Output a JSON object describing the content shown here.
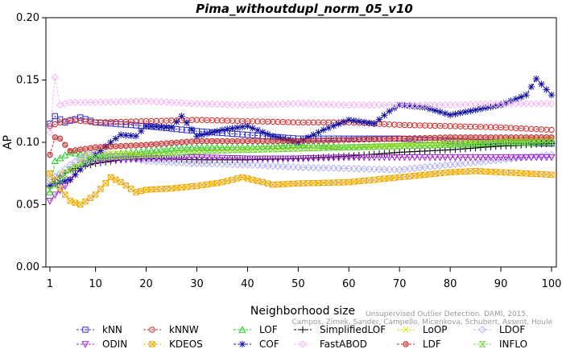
{
  "chart_data": {
    "type": "line",
    "title": "Pima_withoutdupl_norm_05_v10",
    "xlabel": "Neighborhood size",
    "ylabel": "AP",
    "xlim": [
      1,
      100
    ],
    "ylim": [
      0,
      0.2
    ],
    "x_ticks": [
      1,
      10,
      20,
      30,
      40,
      50,
      60,
      70,
      80,
      90,
      100
    ],
    "y_ticks": [
      "0.00",
      "0.05",
      "0.10",
      "0.15",
      "0.20"
    ],
    "grid": false,
    "legend_position": "bottom",
    "watermark": [
      "Unsupervised Outlier Detection. DAMI, 2015.",
      "Campos, Zimek, Sander, Campello, Micenkova, Schubert, Assent, Houle"
    ],
    "series": [
      {
        "name": "kNN",
        "color": "#2a2ad4",
        "marker": "square",
        "dash": "3,2",
        "x": [
          1,
          2,
          4,
          7,
          10,
          20,
          30,
          40,
          50,
          60,
          70,
          80,
          90,
          100
        ],
        "y": [
          0.115,
          0.121,
          0.116,
          0.12,
          0.116,
          0.113,
          0.109,
          0.106,
          0.103,
          0.103,
          0.103,
          0.101,
          0.1,
          0.099
        ]
      },
      {
        "name": "kNNW",
        "color": "#d42a2a",
        "marker": "circle",
        "dash": "3,2",
        "x": [
          1,
          3,
          5,
          10,
          20,
          30,
          40,
          50,
          60,
          70,
          80,
          90,
          100
        ],
        "y": [
          0.113,
          0.116,
          0.118,
          0.116,
          0.117,
          0.118,
          0.117,
          0.116,
          0.116,
          0.114,
          0.113,
          0.112,
          0.11
        ]
      },
      {
        "name": "LOF",
        "color": "#22cc22",
        "marker": "triangle-up",
        "dash": "3,2",
        "x": [
          1,
          2,
          5,
          10,
          15,
          20,
          25,
          30,
          40,
          50,
          60,
          70,
          80,
          90,
          100
        ],
        "y": [
          0.06,
          0.085,
          0.092,
          0.088,
          0.091,
          0.093,
          0.095,
          0.096,
          0.096,
          0.098,
          0.096,
          0.097,
          0.098,
          0.099,
          0.1
        ]
      },
      {
        "name": "SimplifiedLOF",
        "color": "#000000",
        "marker": "plus",
        "dash": "3,2",
        "x": [
          1,
          2,
          3,
          5,
          7,
          10,
          15,
          20,
          30,
          40,
          50,
          60,
          70,
          80,
          90,
          100
        ],
        "y": [
          0.065,
          0.07,
          0.073,
          0.078,
          0.08,
          0.083,
          0.086,
          0.087,
          0.086,
          0.086,
          0.087,
          0.089,
          0.092,
          0.094,
          0.097,
          0.099
        ]
      },
      {
        "name": "LoOP",
        "color": "#e0e000",
        "marker": "x",
        "dash": "3,2",
        "x": [
          1,
          3,
          5,
          8,
          10,
          20,
          30,
          40,
          50,
          60,
          70,
          80,
          90,
          100
        ],
        "y": [
          0.07,
          0.075,
          0.078,
          0.09,
          0.092,
          0.09,
          0.093,
          0.094,
          0.095,
          0.096,
          0.098,
          0.1,
          0.102,
          0.103
        ]
      },
      {
        "name": "LDOF",
        "color": "#b0b0f0",
        "marker": "diamond",
        "dash": "3,2",
        "x": [
          1,
          3,
          5,
          8,
          10,
          20,
          30,
          40,
          50,
          60,
          70,
          80,
          90,
          100
        ],
        "y": [
          0.07,
          0.075,
          0.082,
          0.09,
          0.092,
          0.085,
          0.083,
          0.082,
          0.08,
          0.079,
          0.078,
          0.082,
          0.086,
          0.09
        ]
      },
      {
        "name": "ODIN",
        "color": "#a020d0",
        "marker": "triangle-down",
        "dash": "3,2",
        "x": [
          1,
          2,
          4,
          6,
          8,
          10,
          20,
          30,
          40,
          50,
          60,
          70,
          80,
          90,
          100
        ],
        "y": [
          0.053,
          0.058,
          0.065,
          0.075,
          0.083,
          0.085,
          0.087,
          0.088,
          0.087,
          0.087,
          0.088,
          0.088,
          0.088,
          0.088,
          0.088
        ]
      },
      {
        "name": "KDEOS",
        "color": "#f0a800",
        "marker": "square-x",
        "dash": "3,2",
        "x": [
          1,
          3,
          5,
          7,
          10,
          13,
          15,
          18,
          20,
          25,
          30,
          35,
          39,
          45,
          50,
          60,
          70,
          80,
          85,
          90,
          95,
          100
        ],
        "y": [
          0.075,
          0.063,
          0.053,
          0.05,
          0.058,
          0.072,
          0.068,
          0.06,
          0.062,
          0.063,
          0.065,
          0.068,
          0.072,
          0.066,
          0.067,
          0.068,
          0.072,
          0.076,
          0.077,
          0.076,
          0.075,
          0.074
        ]
      },
      {
        "name": "COF",
        "color": "#1010a0",
        "marker": "star",
        "dash": "3,2",
        "x": [
          1,
          3,
          5,
          8,
          10,
          13,
          15,
          18,
          20,
          25,
          27,
          30,
          35,
          40,
          45,
          50,
          55,
          60,
          65,
          68,
          70,
          75,
          80,
          85,
          90,
          95,
          97,
          100
        ],
        "y": [
          0.065,
          0.068,
          0.07,
          0.082,
          0.09,
          0.1,
          0.106,
          0.105,
          0.113,
          0.112,
          0.121,
          0.105,
          0.11,
          0.113,
          0.105,
          0.1,
          0.11,
          0.118,
          0.115,
          0.125,
          0.13,
          0.128,
          0.122,
          0.126,
          0.13,
          0.138,
          0.151,
          0.138
        ]
      },
      {
        "name": "FastABOD",
        "color": "#f4b4f4",
        "marker": "diamond",
        "dash": "3,2",
        "x": [
          1,
          2,
          3,
          5,
          10,
          20,
          30,
          40,
          50,
          60,
          70,
          80,
          90,
          100
        ],
        "y": [
          0.108,
          0.152,
          0.13,
          0.132,
          0.132,
          0.133,
          0.131,
          0.13,
          0.131,
          0.13,
          0.13,
          0.13,
          0.131,
          0.131
        ]
      },
      {
        "name": "LDF",
        "color": "#c03030",
        "marker": "circle-dot",
        "dash": "3,2",
        "x": [
          1,
          2,
          3,
          5,
          10,
          20,
          30,
          40,
          50,
          60,
          70,
          80,
          90,
          100
        ],
        "y": [
          0.09,
          0.104,
          0.103,
          0.093,
          0.096,
          0.098,
          0.101,
          0.101,
          0.101,
          0.102,
          0.103,
          0.104,
          0.104,
          0.104
        ]
      },
      {
        "name": "INFLO",
        "color": "#70d040",
        "marker": "hourglass",
        "dash": "3,2",
        "x": [
          1,
          3,
          5,
          10,
          20,
          30,
          40,
          50,
          60,
          70,
          80,
          90,
          100
        ],
        "y": [
          0.062,
          0.07,
          0.078,
          0.088,
          0.09,
          0.093,
          0.094,
          0.095,
          0.096,
          0.097,
          0.098,
          0.1,
          0.1
        ]
      }
    ]
  }
}
